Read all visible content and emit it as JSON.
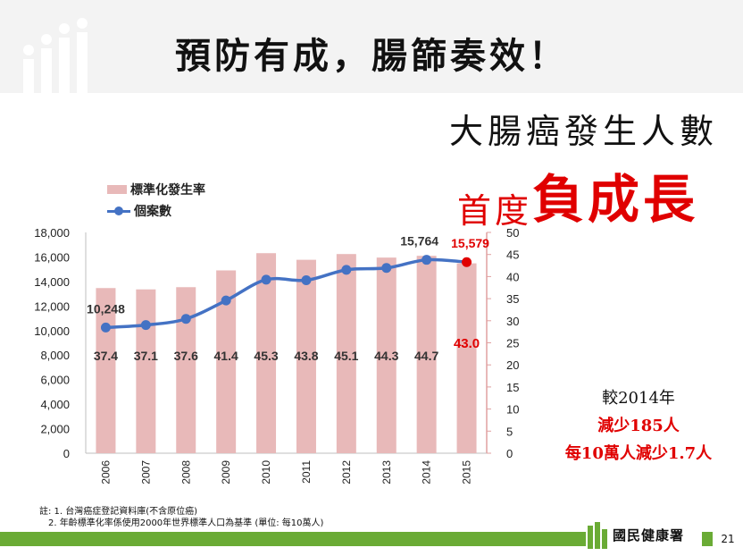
{
  "slide": {
    "title": "預防有成，腸篩奏效！",
    "page_number": "21",
    "org_name": "國民健康署",
    "logo_icon": "people-bars-icon"
  },
  "chart_heading": {
    "title": "大腸癌發生人數",
    "subtitle_part1": "首度",
    "subtitle_part2": "負成長"
  },
  "comparison": {
    "base": "較2014年",
    "line1": "減少185人",
    "line2": "每10萬人減少1.7人"
  },
  "footnotes": [
    "註: 1. 台灣癌症登記資料庫(不含原位癌)",
    "2. 年齡標準化率係使用2000年世界標準人口為基準 (單位: 每10萬人)"
  ],
  "colors": {
    "bar": "#e8b9b9",
    "line": "#4472c4",
    "highlight": "#e00000",
    "footer": "#6aab35"
  },
  "chart_data": {
    "type": "bar",
    "categories": [
      "2006",
      "2007",
      "2008",
      "2009",
      "2010",
      "2011",
      "2012",
      "2013",
      "2014",
      "2015"
    ],
    "series": [
      {
        "name": "標準化發生率",
        "type": "bar",
        "axis": "right",
        "values": [
          37.4,
          37.1,
          37.6,
          41.4,
          45.3,
          43.8,
          45.1,
          44.3,
          44.7,
          43.0
        ],
        "labels": [
          "37.4",
          "37.1",
          "37.6",
          "41.4",
          "45.3",
          "43.8",
          "45.1",
          "44.3",
          "44.7",
          "43.0"
        ]
      },
      {
        "name": "個案數",
        "type": "line",
        "axis": "left",
        "values": [
          10248,
          10450,
          10950,
          12450,
          14150,
          14100,
          14950,
          15100,
          15764,
          15579
        ],
        "labels": {
          "0": "10,248",
          "8": "15,764",
          "9": "15,579"
        }
      }
    ],
    "left_axis": {
      "min": 0,
      "max": 18000,
      "step": 2000,
      "ticks": [
        "0",
        "2,000",
        "4,000",
        "6,000",
        "8,000",
        "10,000",
        "12,000",
        "14,000",
        "16,000",
        "18,000"
      ]
    },
    "right_axis": {
      "min": 0,
      "max": 50,
      "step": 5,
      "ticks": [
        "0",
        "5",
        "10",
        "15",
        "20",
        "25",
        "30",
        "35",
        "40",
        "45",
        "50"
      ]
    },
    "highlight_index": 9,
    "legend_position": "top-left",
    "grid": false
  }
}
